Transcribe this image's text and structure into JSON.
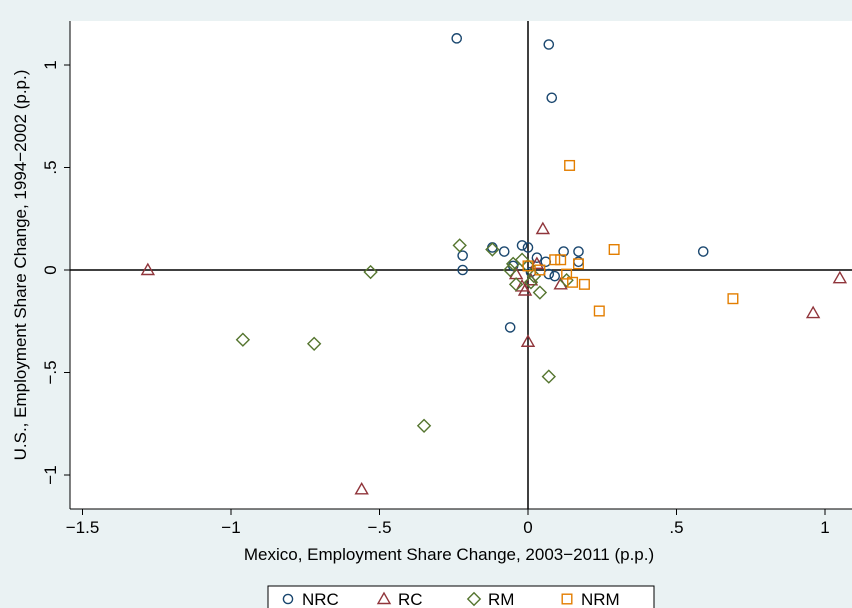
{
  "chart_data": {
    "type": "scatter",
    "title": "",
    "xlabel": "Mexico, Employment Share Change, 2003−2011 (p.p.)",
    "ylabel": "U.S., Employment Share Change, 1994−2002 (p.p.)",
    "xlim": [
      -1.5,
      1.08
    ],
    "ylim": [
      -1.2,
      1.22
    ],
    "x_ticks": [
      -1.5,
      -1,
      -0.5,
      0,
      0.5,
      1
    ],
    "x_tick_labels": [
      "−1.5",
      "−1",
      "−.5",
      "0",
      ".5",
      "1"
    ],
    "y_ticks": [
      -1,
      -0.5,
      0,
      0.5,
      1
    ],
    "y_tick_labels": [
      "−1",
      "−.5",
      "0",
      ".5",
      "1"
    ],
    "reference_lines": {
      "x": 0,
      "y": 0
    },
    "grid": false,
    "legend_position": "bottom",
    "series": [
      {
        "name": "NRC",
        "marker": "circle",
        "color": "#1a476f",
        "points": [
          [
            -0.24,
            1.13
          ],
          [
            0.07,
            1.1
          ],
          [
            0.08,
            0.84
          ],
          [
            0.59,
            0.09
          ],
          [
            -0.22,
            0.07
          ],
          [
            -0.22,
            0.0
          ],
          [
            -0.06,
            -0.28
          ],
          [
            -0.12,
            0.11
          ],
          [
            -0.08,
            0.09
          ],
          [
            -0.02,
            0.12
          ],
          [
            0.0,
            0.11
          ],
          [
            0.03,
            0.06
          ],
          [
            0.06,
            0.04
          ],
          [
            0.12,
            0.09
          ],
          [
            0.17,
            0.09
          ],
          [
            0.17,
            0.04
          ],
          [
            0.07,
            -0.02
          ],
          [
            0.09,
            -0.03
          ],
          [
            -0.05,
            0.02
          ],
          [
            0.01,
            -0.01
          ]
        ]
      },
      {
        "name": "RC",
        "marker": "triangle",
        "color": "#90353b",
        "points": [
          [
            -1.28,
            0.0
          ],
          [
            -0.56,
            -1.07
          ],
          [
            0.05,
            0.2
          ],
          [
            0.0,
            -0.35
          ],
          [
            0.96,
            -0.21
          ],
          [
            1.05,
            -0.04
          ],
          [
            0.11,
            -0.07
          ],
          [
            -0.01,
            -0.1
          ],
          [
            -0.02,
            -0.08
          ],
          [
            0.03,
            0.03
          ],
          [
            0.01,
            -0.05
          ],
          [
            -0.04,
            -0.02
          ]
        ]
      },
      {
        "name": "RM",
        "marker": "diamond",
        "color": "#55752f",
        "points": [
          [
            -0.96,
            -0.34
          ],
          [
            -0.72,
            -0.36
          ],
          [
            -0.53,
            -0.01
          ],
          [
            -0.35,
            -0.76
          ],
          [
            -0.23,
            0.12
          ],
          [
            -0.12,
            0.1
          ],
          [
            0.07,
            -0.52
          ],
          [
            0.04,
            -0.11
          ],
          [
            -0.06,
            0.0
          ],
          [
            -0.04,
            -0.07
          ],
          [
            -0.02,
            0.05
          ],
          [
            0.02,
            -0.03
          ],
          [
            0.0,
            0.02
          ],
          [
            0.13,
            -0.05
          ],
          [
            -0.05,
            0.03
          ],
          [
            0.01,
            -0.06
          ]
        ]
      },
      {
        "name": "NRM",
        "marker": "square",
        "color": "#e37e00",
        "points": [
          [
            0.14,
            0.51
          ],
          [
            0.29,
            0.1
          ],
          [
            0.69,
            -0.14
          ],
          [
            0.24,
            -0.2
          ],
          [
            0.19,
            -0.07
          ],
          [
            0.17,
            0.03
          ],
          [
            0.11,
            0.05
          ],
          [
            0.09,
            0.05
          ],
          [
            0.13,
            -0.02
          ],
          [
            0.0,
            0.02
          ],
          [
            0.04,
            0.0
          ],
          [
            0.15,
            -0.06
          ]
        ]
      }
    ]
  }
}
